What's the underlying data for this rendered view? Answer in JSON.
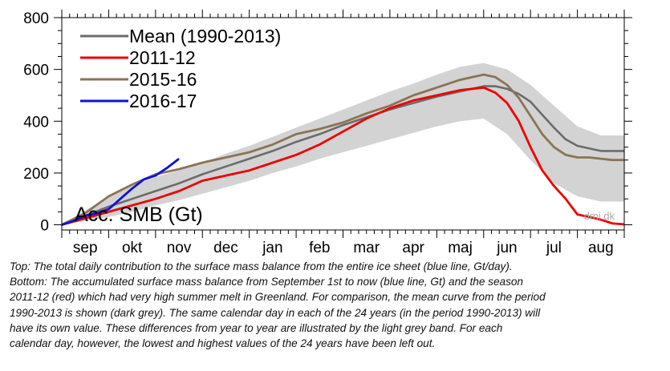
{
  "chart_data": {
    "type": "line",
    "inner_label": "Acc. SMB (Gt)",
    "watermark": "dmi.dk",
    "y_ticks": [
      0,
      200,
      400,
      600,
      800
    ],
    "ylim": [
      -20,
      800
    ],
    "xlim": [
      0,
      12
    ],
    "months": [
      "sep",
      "okt",
      "nov",
      "dec",
      "jan",
      "feb",
      "mar",
      "apr",
      "maj",
      "jun",
      "jul",
      "aug"
    ],
    "colors": {
      "band": "#d3d3d3",
      "mean": "#6b6b6b",
      "2011-12": "#ee0000",
      "2015-16": "#8b7355",
      "2016-17": "#1010dd"
    },
    "legend": {
      "position": "top-left",
      "entries": [
        {
          "label": "Mean (1990-2013)",
          "color": "#6b6b6b"
        },
        {
          "label": "2011-12",
          "color": "#ee0000"
        },
        {
          "label": "2015-16",
          "color": "#8b7355"
        },
        {
          "label": "2016-17",
          "color": "#1010dd"
        }
      ]
    },
    "band": {
      "x": [
        0,
        0.5,
        1,
        1.5,
        2,
        2.5,
        3,
        3.5,
        4,
        4.5,
        5,
        5.5,
        6,
        6.5,
        7,
        7.5,
        8,
        8.5,
        9,
        9.5,
        10,
        10.5,
        11,
        11.5,
        12
      ],
      "lower": [
        0,
        15,
        30,
        50,
        75,
        95,
        120,
        145,
        170,
        200,
        225,
        255,
        280,
        305,
        330,
        355,
        380,
        400,
        410,
        350,
        250,
        160,
        110,
        90,
        90
      ],
      "upper": [
        0,
        55,
        110,
        150,
        185,
        210,
        240,
        275,
        305,
        340,
        375,
        410,
        445,
        480,
        515,
        545,
        580,
        610,
        625,
        600,
        540,
        460,
        380,
        345,
        345
      ]
    },
    "series": [
      {
        "name": "Mean (1990-2013)",
        "x": [
          0,
          0.5,
          1,
          1.5,
          2,
          2.5,
          3,
          3.5,
          4,
          4.5,
          5,
          5.5,
          6,
          6.5,
          7,
          7.5,
          8,
          8.5,
          9,
          9.25,
          9.5,
          9.75,
          10,
          10.25,
          10.5,
          10.75,
          11,
          11.5,
          12
        ],
        "y": [
          0,
          35,
          70,
          100,
          130,
          160,
          195,
          225,
          255,
          285,
          320,
          350,
          385,
          415,
          445,
          470,
          495,
          515,
          535,
          535,
          525,
          505,
          475,
          425,
          375,
          330,
          305,
          285,
          285
        ]
      },
      {
        "name": "2011-12",
        "x": [
          0,
          0.5,
          1,
          1.5,
          2,
          2.5,
          3,
          3.5,
          4,
          4.5,
          5,
          5.5,
          6,
          6.5,
          7,
          7.5,
          8,
          8.5,
          9,
          9.25,
          9.5,
          9.75,
          10,
          10.25,
          10.5,
          10.75,
          11,
          11.25,
          11.5,
          11.75,
          12
        ],
        "y": [
          0,
          25,
          50,
          75,
          100,
          130,
          170,
          190,
          210,
          240,
          270,
          310,
          360,
          410,
          450,
          480,
          500,
          520,
          530,
          510,
          470,
          400,
          300,
          210,
          150,
          100,
          40,
          30,
          20,
          5,
          2
        ]
      },
      {
        "name": "2015-16",
        "x": [
          0,
          0.5,
          1,
          1.5,
          2,
          2.5,
          3,
          3.5,
          4,
          4.5,
          5,
          5.5,
          6,
          6.5,
          7,
          7.5,
          8,
          8.5,
          9,
          9.25,
          9.5,
          9.75,
          10,
          10.25,
          10.5,
          10.75,
          11,
          11.25,
          11.5,
          11.75,
          12
        ],
        "y": [
          0,
          45,
          110,
          155,
          195,
          215,
          240,
          260,
          280,
          310,
          350,
          370,
          395,
          430,
          460,
          500,
          530,
          560,
          580,
          570,
          540,
          490,
          420,
          350,
          300,
          270,
          260,
          260,
          255,
          250,
          250
        ]
      },
      {
        "name": "2016-17",
        "x": [
          0,
          0.25,
          0.5,
          0.75,
          1,
          1.25,
          1.5,
          1.75,
          2,
          2.25,
          2.5
        ],
        "y": [
          0,
          15,
          35,
          45,
          60,
          100,
          140,
          175,
          190,
          220,
          255
        ]
      }
    ]
  },
  "caption": {
    "line1": "Top: The total daily contribution to the surface mass balance from the entire ice sheet (blue line, Gt/day).",
    "line2": "Bottom: The accumulated surface mass balance from September 1st to now (blue line, Gt) and the season",
    "line3": "2011-12 (red) which had very high summer melt in Greenland. For comparison, the mean curve from the period",
    "line4": "1990-2013 is shown (dark grey). The same calendar day in each of the 24 years (in the period 1990-2013) will",
    "line5": "have its own value. These differences from year to year are illustrated by the light grey band. For each",
    "line6": "calendar day, however, the lowest and highest values of the 24 years have been left out."
  }
}
